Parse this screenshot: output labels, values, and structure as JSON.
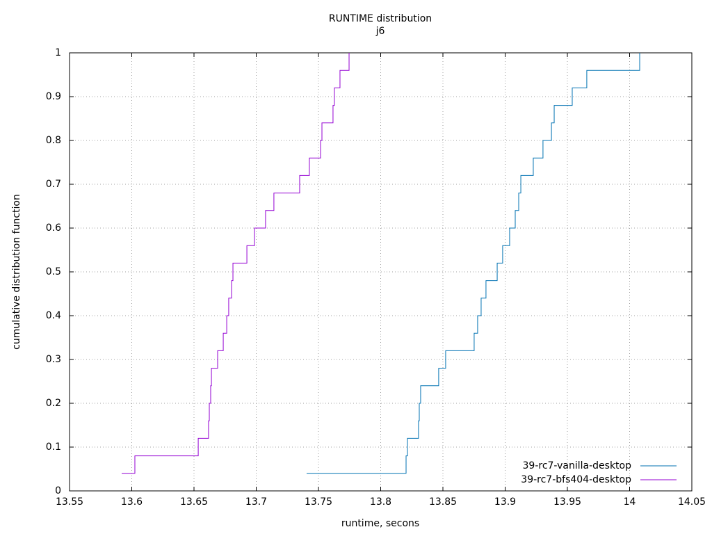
{
  "chart_data": {
    "type": "step",
    "title": "RUNTIME distribution",
    "subtitle": "j6",
    "x_label": "runtime, secons",
    "y_label": "cumulative distribution function",
    "xlim": [
      13.55,
      14.05
    ],
    "xticks": [
      13.55,
      13.6,
      13.65,
      13.7,
      13.75,
      13.8,
      13.85,
      13.9,
      13.95,
      14,
      14.05
    ],
    "ylim": [
      0,
      1
    ],
    "yticks": [
      0,
      0.1,
      0.2,
      0.3,
      0.4,
      0.5,
      0.6,
      0.7,
      0.8,
      0.9,
      1
    ],
    "grid": true,
    "legend": "bottom-right",
    "series": [
      {
        "name": "39-rc7-vanilla-desktop",
        "color": "#0072b2",
        "x": [
          13.7405,
          13.8204,
          13.8215,
          13.8304,
          13.831,
          13.8321,
          13.8466,
          13.8522,
          13.8751,
          13.8779,
          13.8807,
          13.8846,
          13.8936,
          13.898,
          13.9036,
          13.9081,
          13.9109,
          13.9126,
          13.9226,
          13.9304,
          13.9372,
          13.9394,
          13.9539,
          13.9656,
          14.0081
        ],
        "values": [
          0.04,
          0.08,
          0.12,
          0.16,
          0.2,
          0.24,
          0.28,
          0.32,
          0.36,
          0.4,
          0.44,
          0.48,
          0.52,
          0.56,
          0.6,
          0.64,
          0.68,
          0.72,
          0.76,
          0.8,
          0.84,
          0.88,
          0.92,
          0.96,
          1
        ]
      },
      {
        "name": "39-rc7-bfs404-desktop",
        "color": "#9400d3",
        "x": [
          13.5919,
          13.6025,
          13.6534,
          13.6617,
          13.6623,
          13.6634,
          13.664,
          13.669,
          13.6735,
          13.6763,
          13.6779,
          13.6802,
          13.6813,
          13.6925,
          13.6986,
          13.7075,
          13.7142,
          13.7349,
          13.7427,
          13.7517,
          13.7528,
          13.7617,
          13.7628,
          13.7673,
          13.7746
        ],
        "values": [
          0.04,
          0.08,
          0.12,
          0.16,
          0.2,
          0.24,
          0.28,
          0.32,
          0.36,
          0.4,
          0.44,
          0.48,
          0.52,
          0.56,
          0.6,
          0.64,
          0.68,
          0.72,
          0.76,
          0.8,
          0.84,
          0.88,
          0.92,
          0.96,
          1
        ]
      }
    ]
  }
}
